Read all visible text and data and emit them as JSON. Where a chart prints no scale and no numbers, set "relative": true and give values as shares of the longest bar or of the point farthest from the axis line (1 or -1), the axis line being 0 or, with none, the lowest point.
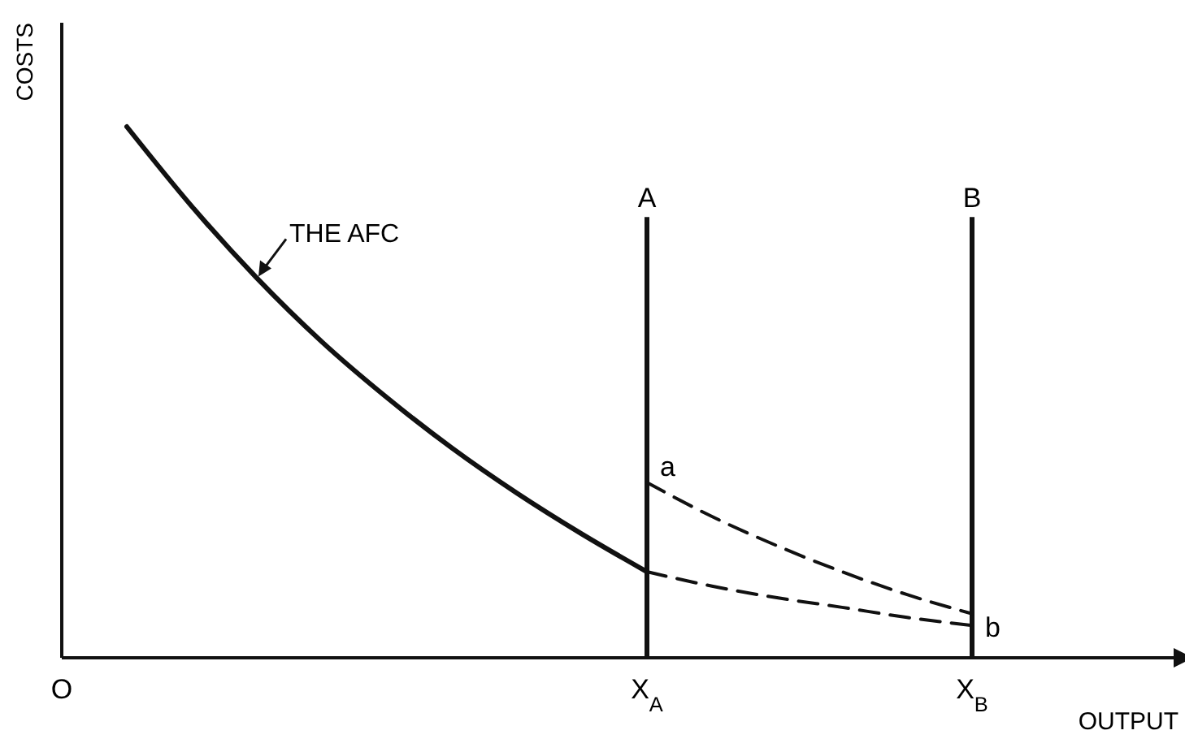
{
  "chart_data": {
    "type": "line",
    "relative": true,
    "xlabel": "OUTPUT",
    "ylabel": "COSTS",
    "marker": "none",
    "categories": [
      "O",
      null,
      null,
      null,
      null,
      null,
      null,
      null,
      null,
      "X$_{A}$",
      null,
      null,
      null,
      null,
      "X$_{B}$",
      null,
      null,
      null
    ],
    "series": [
      {
        "name": "THE AFC",
        "color": "#111111",
        "line_style": "solid",
        "values": [
          null,
          1.0,
          0.85,
          0.715,
          0.595,
          0.49,
          0.395,
          0.31,
          0.233,
          0.162,
          null,
          null,
          null,
          null,
          null,
          null,
          null,
          null
        ]
      },
      {
        "color": "#111111",
        "line_style": "dashed",
        "values": [
          null,
          null,
          null,
          null,
          null,
          null,
          null,
          null,
          null,
          0.162,
          0.135,
          0.113,
          0.095,
          0.076,
          0.061,
          null,
          null,
          null
        ]
      },
      {
        "color": "#111111",
        "line_style": "dashed",
        "values": [
          null,
          null,
          null,
          null,
          null,
          null,
          null,
          null,
          null,
          0.33,
          0.266,
          0.211,
          0.162,
          0.119,
          0.083,
          null,
          null,
          null
        ]
      }
    ],
    "ref_lines": [
      {
        "axis": "x",
        "value": "X$_{A}$",
        "label": "A"
      },
      {
        "axis": "x",
        "value": "X$_{B}$",
        "label": "B"
      }
    ],
    "annotations": [
      {
        "text": "a",
        "x": "X$_{A}$",
        "y": 0.33
      },
      {
        "text": "b",
        "x": "X$_{B}$",
        "y": 0.083
      }
    ]
  }
}
